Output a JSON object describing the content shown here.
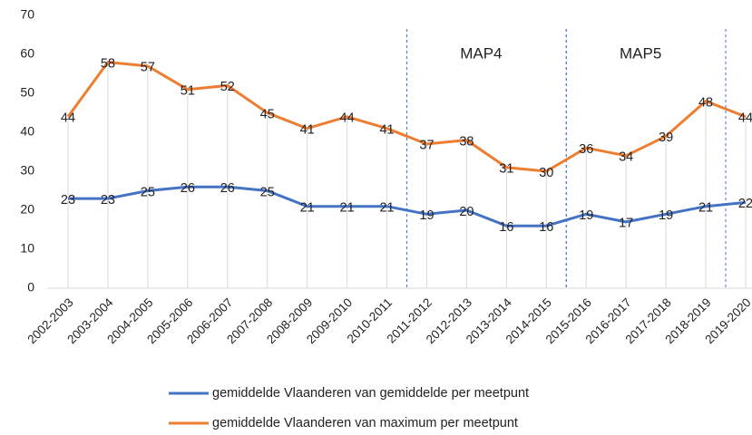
{
  "chart_data": {
    "type": "line",
    "categories": [
      "2002-2003",
      "2003-2004",
      "2004-2005",
      "2005-2006",
      "2006-2007",
      "2007-2008",
      "2008-2009",
      "2009-2010",
      "2010-2011",
      "2011-2012",
      "2012-2013",
      "2013-2014",
      "2014-2015",
      "2015-2016",
      "2016-2017",
      "2017-2018",
      "2018-2019",
      "2019-2020"
    ],
    "series": [
      {
        "name": "gemiddelde Vlaanderen van gemiddelde per meetpunt",
        "color": "#4472c4",
        "values": [
          23,
          23,
          25,
          26,
          26,
          25,
          21,
          21,
          21,
          19,
          20,
          16,
          16,
          19,
          17,
          19,
          21,
          22
        ]
      },
      {
        "name": "gemiddelde Vlaanderen van maximum per meetpunt",
        "color": "#ed7d31",
        "values": [
          44,
          58,
          57,
          51,
          52,
          45,
          41,
          44,
          41,
          37,
          38,
          31,
          30,
          36,
          34,
          39,
          48,
          44
        ]
      }
    ],
    "ylim": [
      0,
      70
    ],
    "yticks": [
      0,
      10,
      20,
      30,
      40,
      50,
      60,
      70
    ],
    "annotations": [
      {
        "text": "MAP4",
        "from": "2011-2012",
        "to": "2014-2015"
      },
      {
        "text": "MAP5",
        "from": "2015-2016",
        "to": "2018-2019"
      }
    ]
  }
}
